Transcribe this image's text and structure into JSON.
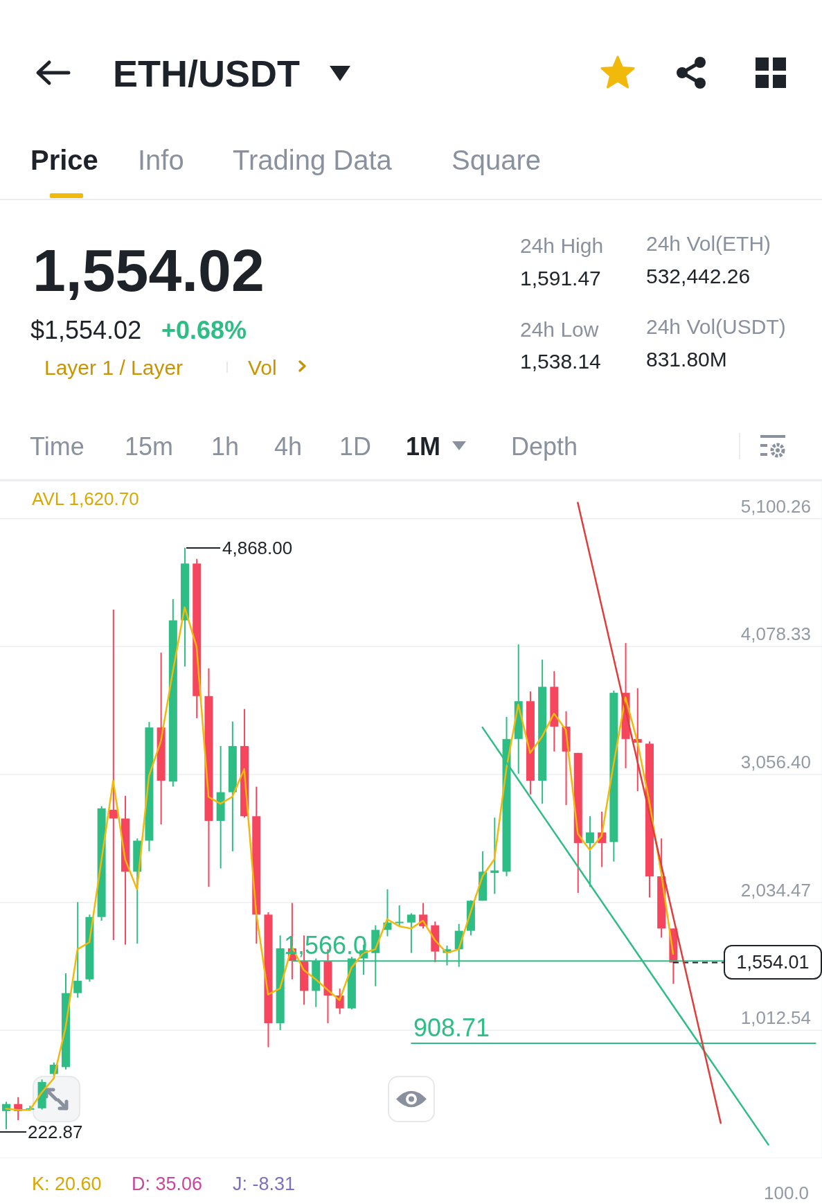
{
  "chart_data": [
    {
      "type": "other",
      "title": "ETH/USDT",
      "annotations": [
        "Price",
        "Info",
        "Trading Data",
        "Square",
        "1,554.02",
        "$1,554.02",
        "+0.68%",
        "Layer 1 / Layer",
        "Vol",
        "24h High",
        "1,591.47",
        "24h Vol(ETH)",
        "532,442.26",
        "24h Low",
        "1,538.14",
        "24h Vol(USDT)",
        "831.80M",
        "Time",
        "15m",
        "1h",
        "4h",
        "1D",
        "1M",
        "Depth"
      ]
    },
    {
      "type": "candlestick",
      "categories": [
        null,
        null,
        null,
        null,
        null,
        null,
        null,
        null,
        null,
        null,
        null,
        null,
        null,
        null,
        null,
        null,
        null,
        null,
        null,
        null,
        null,
        null,
        null,
        null,
        null,
        null,
        null,
        null,
        null,
        null,
        null,
        null,
        null,
        null,
        null,
        null,
        null,
        null,
        null,
        null,
        null,
        null,
        null,
        null,
        null,
        null,
        null,
        null,
        null,
        null,
        null,
        null,
        null,
        null,
        null,
        null,
        null,
        null,
        null,
        null,
        null,
        null,
        null,
        null,
        null,
        null,
        null,
        null,
        null
      ],
      "ohlc": [
        [
          368,
          442,
          222.87,
          424
        ],
        [
          424,
          479,
          295,
          368
        ],
        [
          380,
          410,
          370,
          390
        ],
        [
          390,
          620,
          380,
          600
        ],
        [
          664,
          756,
          650,
          738
        ],
        [
          719,
          1468,
          700,
          1310
        ],
        [
          1310,
          2037,
          1273,
          1409
        ],
        [
          1420,
          1937,
          1402,
          1918
        ],
        [
          1918,
          2804,
          1889,
          2786
        ],
        [
          2775,
          4373,
          1734,
          2705
        ],
        [
          2705,
          2886,
          1697,
          2280
        ],
        [
          2280,
          2546,
          1705,
          2528
        ],
        [
          2528,
          3476,
          2443,
          3432
        ],
        [
          3432,
          4030,
          2657,
          3007
        ],
        [
          3000,
          4458,
          2960,
          4288
        ],
        [
          4288,
          4868,
          3919,
          4742
        ],
        [
          4742,
          4779,
          3506,
          3683
        ],
        [
          3683,
          3904,
          2158,
          2686
        ],
        [
          2686,
          3284,
          2306,
          2915
        ],
        [
          2915,
          3480,
          2443,
          3284
        ],
        [
          3284,
          3580,
          2712,
          2723
        ],
        [
          2723,
          2959,
          1705,
          1937
        ],
        [
          1937,
          1956,
          878,
          1070
        ],
        [
          1070,
          1771,
          1014,
          1668
        ],
        [
          1668,
          2030,
          1420,
          1568
        ],
        [
          1568,
          1771,
          1217,
          1328
        ],
        [
          1328,
          1587,
          1199,
          1568
        ],
        [
          1568,
          1660,
          1070,
          1291
        ],
        [
          1291,
          1346,
          1143,
          1188
        ],
        [
          1188,
          1600,
          1180,
          1587
        ],
        [
          1587,
          1697,
          1457,
          1653
        ],
        [
          1630,
          1852,
          1365,
          1815
        ],
        [
          1815,
          2140,
          1764,
          1874
        ],
        [
          1870,
          2011,
          1845,
          1880
        ],
        [
          1874,
          1948,
          1631,
          1937
        ],
        [
          1937,
          2030,
          1826,
          1845
        ],
        [
          1852,
          1882,
          1557,
          1642
        ],
        [
          1631,
          1690,
          1531,
          1660
        ],
        [
          1660,
          1863,
          1520,
          1808
        ],
        [
          1808,
          2052,
          1771,
          2048
        ],
        [
          2048,
          2443,
          2048,
          2280
        ],
        [
          2270,
          2712,
          2103,
          2290
        ],
        [
          2280,
          3517,
          2244,
          3340
        ],
        [
          3340,
          4096,
          3063,
          3642
        ],
        [
          3642,
          3720,
          2897,
          3007
        ],
        [
          3007,
          3974,
          2823,
          3757
        ],
        [
          3757,
          3882,
          3240,
          3439
        ],
        [
          3439,
          3561,
          2812,
          3240
        ],
        [
          3229,
          3229,
          2111,
          2509
        ],
        [
          2509,
          2723,
          2158,
          2594
        ],
        [
          2594,
          2760,
          2317,
          2509
        ],
        [
          2517,
          3727,
          2361,
          3709
        ],
        [
          3709,
          4107,
          3107,
          3340
        ],
        [
          3340,
          3746,
          2923,
          3310
        ],
        [
          3303,
          3321,
          2074,
          2243
        ],
        [
          2243,
          2546,
          1753,
          1826
        ],
        [
          1826,
          1826,
          1384,
          1554.01
        ],
        null,
        null,
        null,
        null,
        null,
        null,
        null,
        null,
        null,
        null,
        null,
        null
      ],
      "colors": [
        "#2ebd85",
        "#f6465d",
        "#2ebd85",
        "#2ebd85",
        "#2ebd85",
        "#2ebd85",
        "#2ebd85",
        "#2ebd85",
        "#2ebd85",
        "#f6465d",
        "#f6465d",
        "#2ebd85",
        "#2ebd85",
        "#f6465d",
        "#2ebd85",
        "#2ebd85",
        "#f6465d",
        "#f6465d",
        "#2ebd85",
        "#2ebd85",
        "#f6465d",
        "#f6465d",
        "#f6465d",
        "#2ebd85",
        "#f6465d",
        "#f6465d",
        "#2ebd85",
        "#f6465d",
        "#f6465d",
        "#2ebd85",
        "#2ebd85",
        "#2ebd85",
        "#2ebd85",
        "#2ebd85",
        "#2ebd85",
        "#f6465d",
        "#f6465d",
        "#2ebd85",
        "#2ebd85",
        "#2ebd85",
        "#2ebd85",
        "#2ebd85",
        "#2ebd85",
        "#2ebd85",
        "#f6465d",
        "#2ebd85",
        "#f6465d",
        "#f6465d",
        "#f6465d",
        "#2ebd85",
        "#f6465d",
        "#2ebd85",
        "#f6465d",
        "#f6465d",
        "#f6465d",
        "#f6465d",
        "#f6465d",
        null,
        null,
        null,
        null,
        null,
        null,
        null,
        null,
        null,
        null,
        null,
        null
      ],
      "series": [
        {
          "type": "line",
          "color": "#f0b90b",
          "values": [
            387,
            376,
            376,
            516,
            627,
            1033,
            1660,
            1716,
            2361,
            3007,
            2380,
            2140,
            3045,
            3321,
            3875,
            4392,
            4078,
            2878,
            2823,
            2878,
            3100,
            1956,
            1299,
            1347,
            1679,
            1494,
            1420,
            1336,
            1254,
            1513,
            1631,
            1660,
            1900,
            1845,
            1826,
            1889,
            1734,
            1631,
            1660,
            1956,
            2243,
            2380,
            3100,
            3616,
            3229,
            3358,
            3543,
            3413,
            2583,
            2454,
            2565,
            3137,
            3672,
            3321,
            2841,
            2269,
            1623,
            null,
            null,
            null,
            null,
            null,
            null,
            null,
            null,
            null,
            null,
            null,
            null
          ]
        },
        {
          "type": "line",
          "color": "#2ebd85",
          "values": [
            null,
            null,
            null,
            null,
            null,
            null,
            null,
            null,
            null,
            null,
            null,
            null,
            null,
            null,
            null,
            null,
            null,
            null,
            null,
            null,
            null,
            null,
            null,
            null,
            null,
            null,
            null,
            null,
            null,
            null,
            null,
            null,
            null,
            null,
            null,
            null,
            null,
            null,
            null,
            null,
            3432,
            null,
            null,
            null,
            null,
            null,
            null,
            null,
            null,
            null,
            null,
            null,
            null,
            null,
            null,
            null,
            null,
            null,
            null,
            null,
            null,
            null,
            null,
            null,
            99,
            null,
            null,
            null,
            null
          ]
        },
        {
          "type": "line",
          "color": "#e03c3c",
          "values": [
            null,
            null,
            null,
            null,
            null,
            null,
            null,
            null,
            null,
            null,
            null,
            null,
            null,
            null,
            null,
            null,
            null,
            null,
            null,
            null,
            null,
            null,
            null,
            null,
            null,
            null,
            null,
            null,
            null,
            null,
            null,
            null,
            null,
            null,
            null,
            null,
            null,
            null,
            null,
            null,
            null,
            null,
            null,
            null,
            null,
            null,
            null,
            null,
            5228,
            null,
            null,
            null,
            null,
            null,
            null,
            null,
            null,
            null,
            null,
            null,
            272,
            null,
            null,
            null,
            null,
            null,
            null,
            null,
            null
          ]
        }
      ],
      "ylim": [
        -9.39,
        5403
      ],
      "yticks": [
        {
          "value": -9.39,
          "label": null
        },
        {
          "value": 1012.54,
          "label": "1,012.54"
        },
        {
          "value": 2034.47,
          "label": "2,034.47"
        },
        {
          "value": 3056.4,
          "label": "3,056.40"
        },
        {
          "value": 4078.33,
          "label": "4,078.33"
        },
        {
          "value": 5100.26,
          "label": "5,100.26"
        }
      ],
      "grid": "y",
      "tick_labels": "y",
      "ref_lines": [
        {
          "axis": "y",
          "value": 1566,
          "label": "1,566.0",
          "color": "#2ebd85"
        },
        {
          "axis": "y",
          "value": 908.71,
          "label": "908.71",
          "color": "#2ebd85"
        },
        {
          "axis": "y",
          "value": 1554.01,
          "label": "1,554.01",
          "color": "#1e2329",
          "line_style": "dashed"
        }
      ],
      "annotations": [
        "4,868.00",
        "222.87",
        "AVL 1,620.70",
        "K: 20.60",
        "D: 35.06",
        "J: -8.31",
        "100.0"
      ]
    }
  ]
}
